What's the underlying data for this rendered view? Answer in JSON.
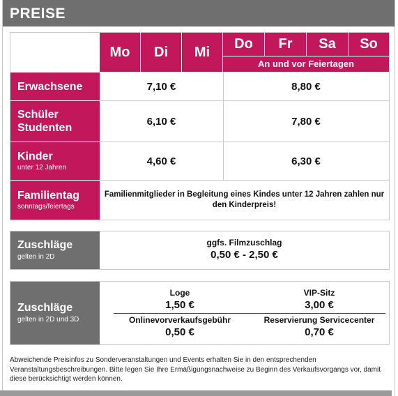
{
  "header": {
    "title": "PREISE"
  },
  "days": [
    "Mo",
    "Di",
    "Mi",
    "Do",
    "Fr",
    "Sa",
    "So"
  ],
  "holiday_note": "An und vor Feiertagen",
  "rows": [
    {
      "label": "Erwachsene",
      "sub": "",
      "price_mo_mi": "7,10 €",
      "price_do_so": "8,80 €"
    },
    {
      "label": "Schüler",
      "label2": "Studenten",
      "sub": "",
      "price_mo_mi": "6,10 €",
      "price_do_so": "7,80 €"
    },
    {
      "label": "Kinder",
      "sub": "unter 12 Jahren",
      "price_mo_mi": "4,60 €",
      "price_do_so": "6,30 €"
    }
  ],
  "family": {
    "label": "Familientag",
    "sub": "sonntags/feiertags",
    "text": "Familienmitglieder in Begleitung eines Kindes unter 12 Jahren zahlen nur den Kinderpreis!"
  },
  "surcharge_2d": {
    "label": "Zuschläge",
    "sub": "gelten in 2D",
    "title": "ggfs. Filmzuschlag",
    "value": "0,50 € - 2,50 €"
  },
  "surcharge_3d": {
    "label": "Zuschläge",
    "sub": "gelten in 2D und 3D",
    "items": [
      {
        "title": "Loge",
        "value": "1,50 €"
      },
      {
        "title": "VIP-Sitz",
        "value": "3,00 €"
      },
      {
        "title": "Onlinevorverkaufsgebühr",
        "value": "0,50 €"
      },
      {
        "title": "Reservierung Servicecenter",
        "value": "0,70 €"
      }
    ]
  },
  "note": "Abweichende Preisinfos zu Sonderveranstaltungen und Events erhalten Sie in den entsprechenden Veranstaltungsbeschreibungen. Bitte legen Sie Ihre Ermäßigungsnachweise zu Beginn des Verkaufsvorgangs vor, damit diese berücksichtigt werden können.",
  "colors": {
    "accent": "#c2185b",
    "gray": "#6f6f6f"
  }
}
